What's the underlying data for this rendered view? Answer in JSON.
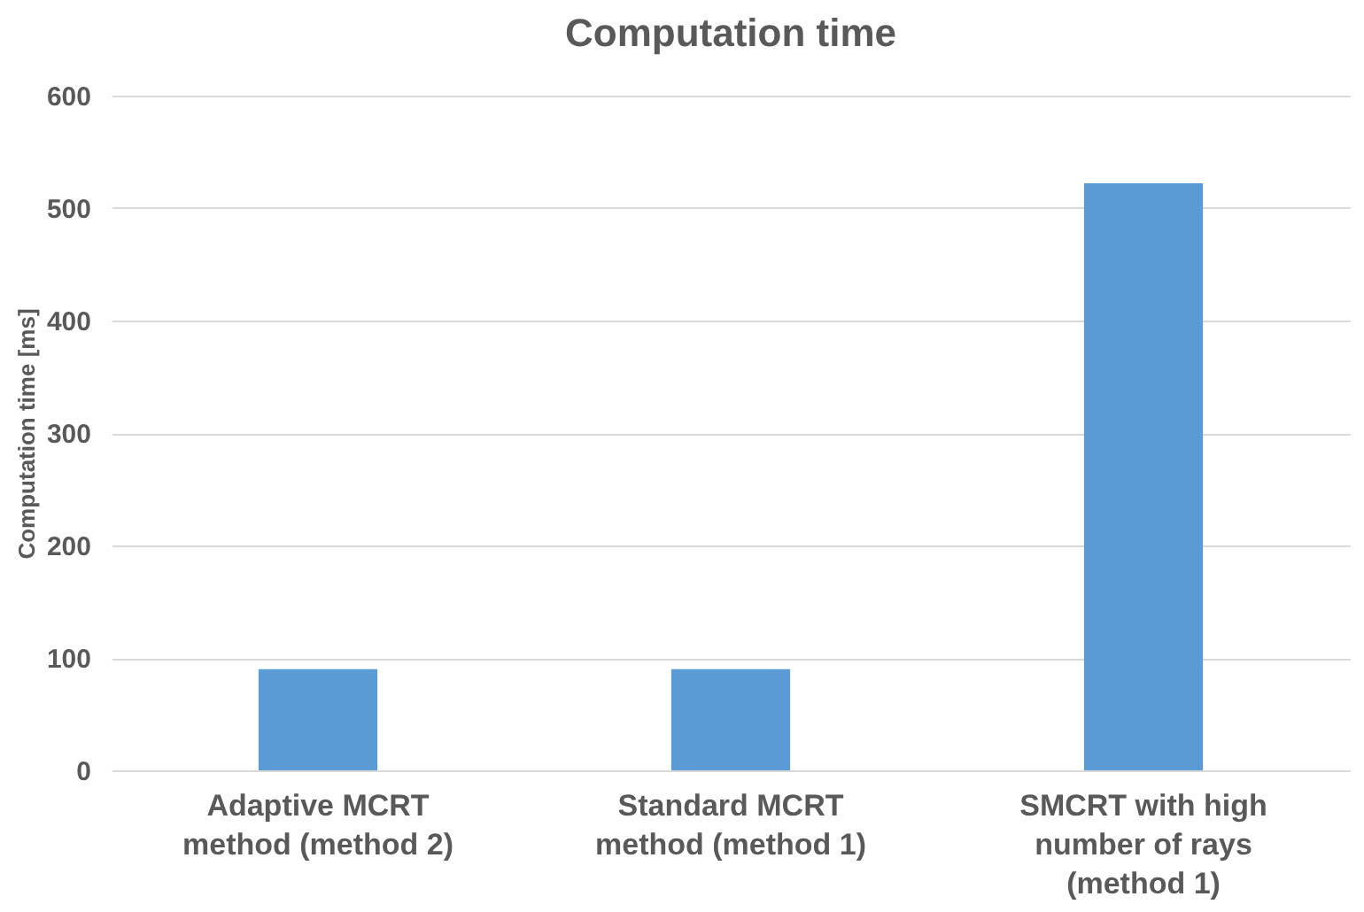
{
  "chart_data": {
    "type": "bar",
    "title": "Computation time",
    "ylabel": "Computation time [ms]",
    "categories": [
      "Adaptive MCRT method (method 2)",
      "Standard MCRT method (method 1)",
      "SMCRT with high number of rays (method 1)"
    ],
    "values": [
      90,
      90,
      522
    ],
    "color": "#5b9bd5",
    "ylim": [
      0,
      600
    ],
    "yticks": [
      0,
      100,
      200,
      300,
      400,
      500,
      600
    ],
    "grid": "y"
  }
}
